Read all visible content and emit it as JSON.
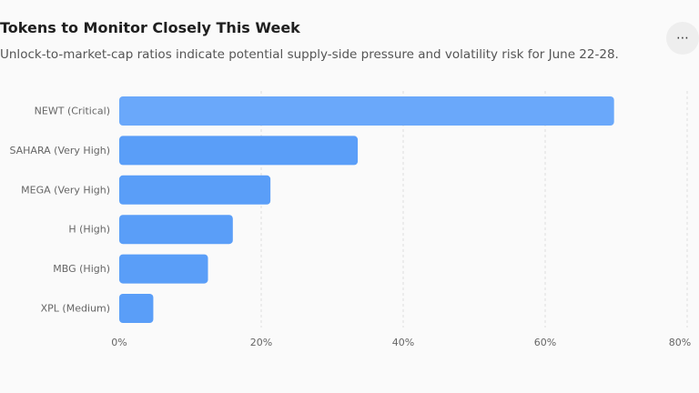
{
  "header": {
    "title": "Tokens to Monitor Closely This Week",
    "subtitle": "Unlock-to-market-cap ratios indicate potential supply-side pressure and volatility risk for June 22-28."
  },
  "menu": {
    "icon": "more-horizontal-icon",
    "glyph": "⋯"
  },
  "colors": {
    "bar": "#5a9ef8",
    "bar_highlight": "#6aa8fa",
    "grid": "#dddddd"
  },
  "chart_data": {
    "type": "bar",
    "orientation": "horizontal",
    "categories": [
      "NEWT (Critical)",
      "SAHARA (Very High)",
      "MEGA (Very High)",
      "H (High)",
      "MBG (High)",
      "XPL (Medium)"
    ],
    "values": [
      69.7,
      33.6,
      21.3,
      16.0,
      12.5,
      4.8
    ],
    "xlim": [
      0,
      80
    ],
    "xticks": [
      "0%",
      "20%",
      "40%",
      "60%",
      "80%"
    ],
    "xtick_values": [
      0,
      20,
      40,
      60,
      80
    ],
    "grid": "vertical-dashed",
    "legend": "none"
  }
}
